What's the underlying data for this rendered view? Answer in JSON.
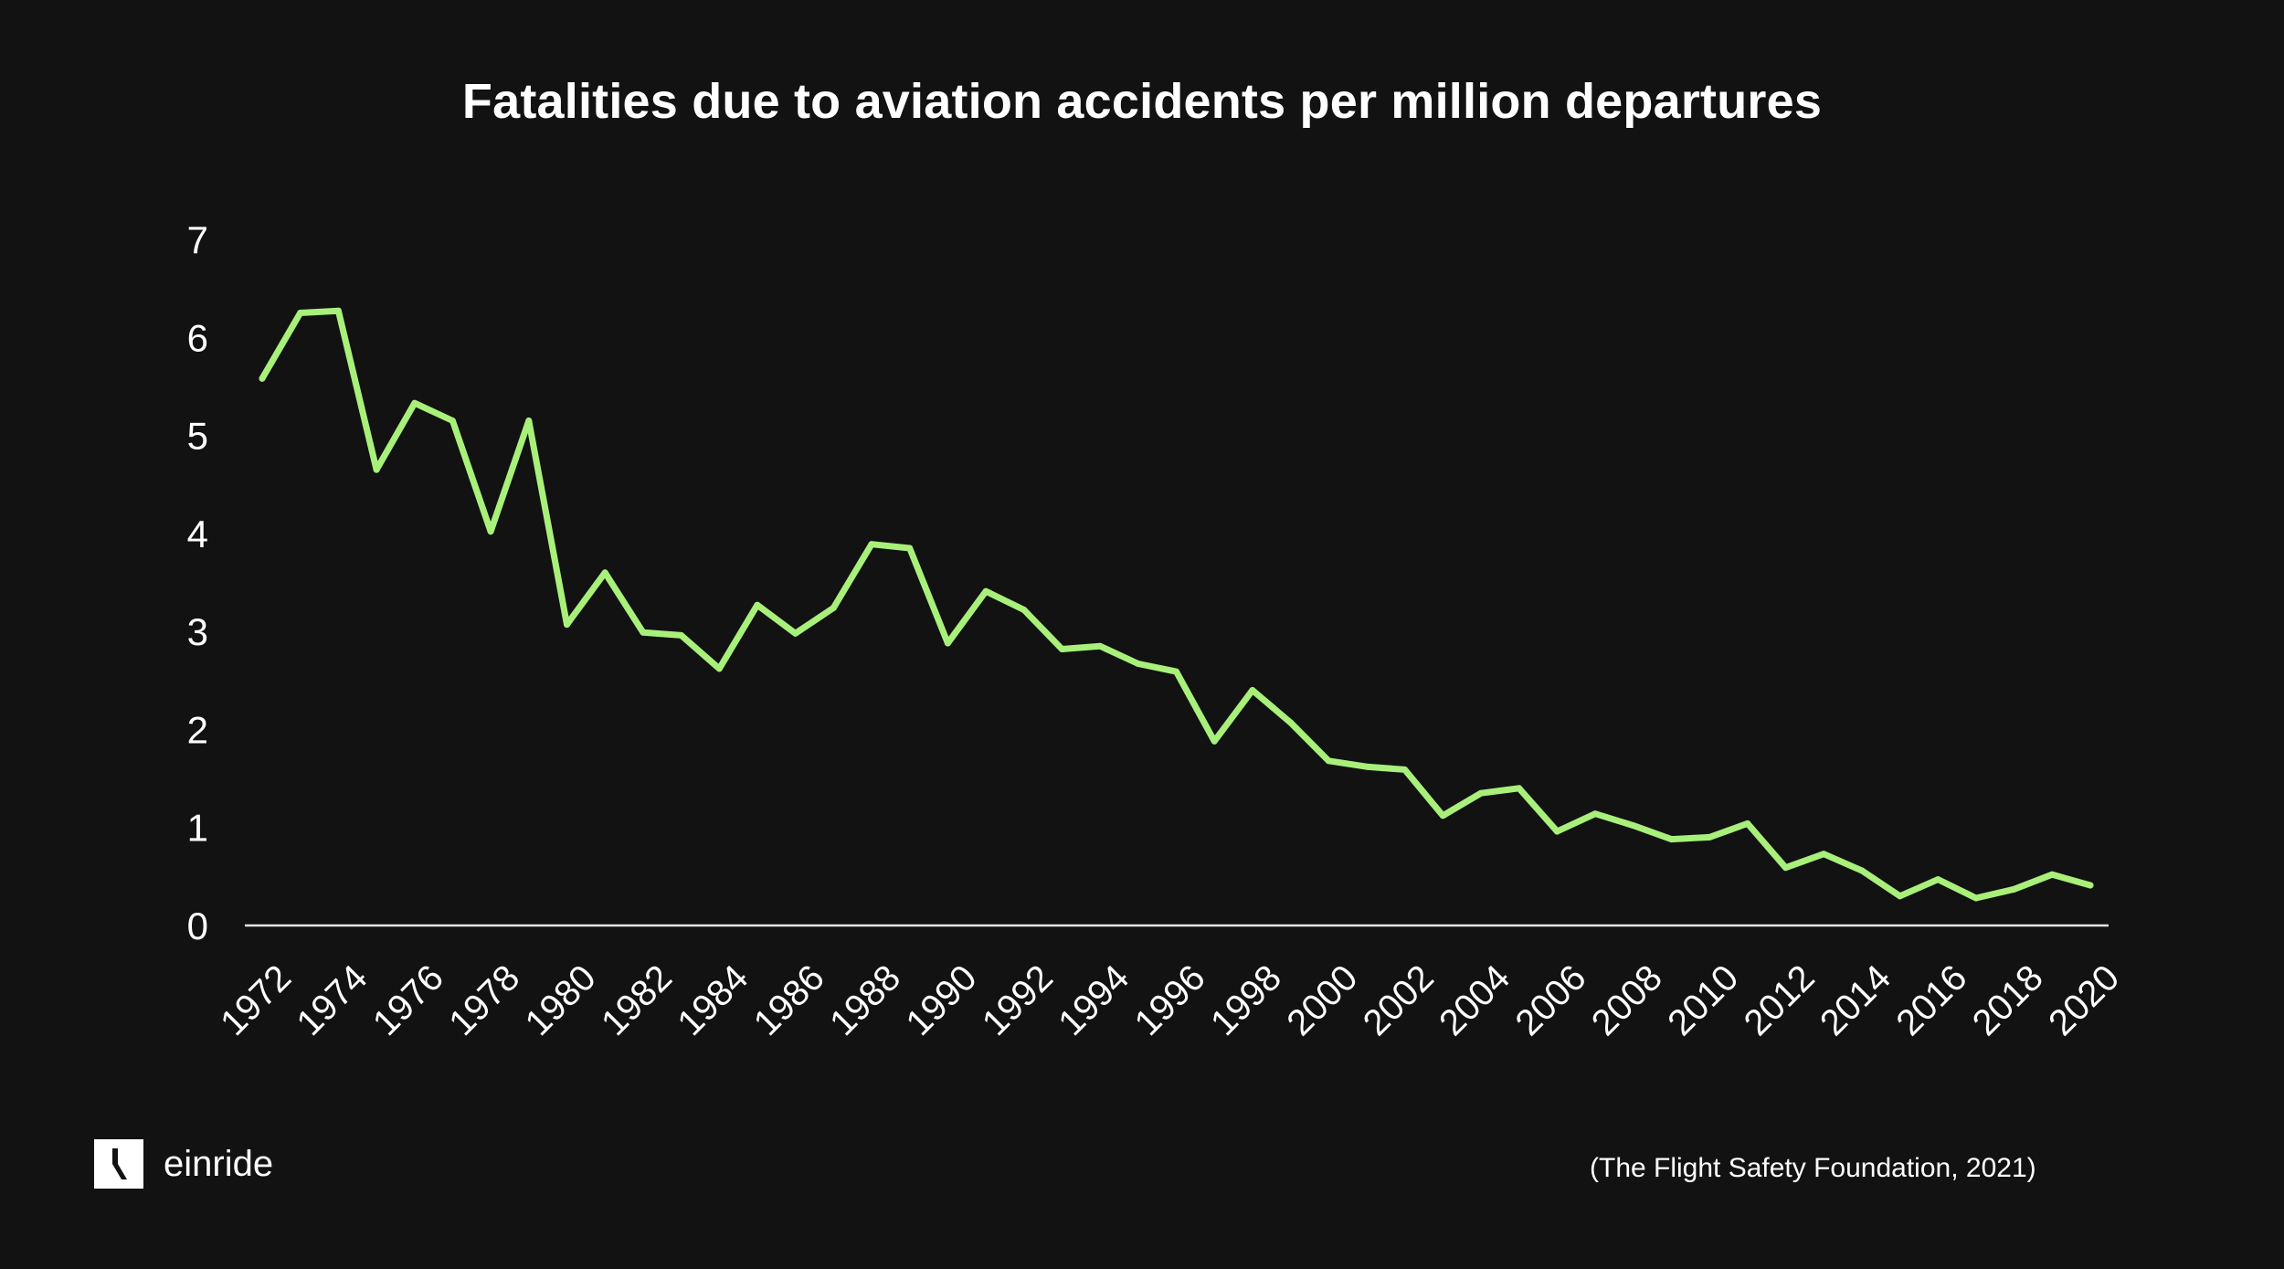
{
  "brand": {
    "name": "einride"
  },
  "source": "(The Flight Safety Foundation, 2021)",
  "colors": {
    "background": "#121212",
    "line": "#a8f07a",
    "axis": "#e6e6e6",
    "text": "#ffffff"
  },
  "chart_data": {
    "type": "line",
    "title": "Fatalities due to aviation accidents per million departures",
    "xlabel": "",
    "ylabel": "",
    "ylim": [
      0,
      7
    ],
    "yticks": [
      0,
      1,
      2,
      3,
      4,
      5,
      6,
      7
    ],
    "xtick_labels": [
      "1972",
      "1974",
      "1976",
      "1978",
      "1980",
      "1982",
      "1984",
      "1986",
      "1988",
      "1990",
      "1992",
      "1994",
      "1996",
      "1998",
      "2000",
      "2002",
      "2004",
      "2006",
      "2008",
      "2010",
      "2012",
      "2014",
      "2016",
      "2018",
      "2020"
    ],
    "grid": false,
    "legend": "none",
    "series": [
      {
        "x": [
          1972,
          1973,
          1974,
          1975,
          1976,
          1977,
          1978,
          1979,
          1980,
          1981,
          1982,
          1983,
          1984,
          1985,
          1986,
          1987,
          1988,
          1989,
          1990,
          1991,
          1992,
          1993,
          1994,
          1995,
          1996,
          1997,
          1998,
          1999,
          2000,
          2001,
          2002,
          2003,
          2004,
          2005,
          2006,
          2007,
          2008,
          2009,
          2010,
          2011,
          2012,
          2013,
          2014,
          2015,
          2016,
          2017,
          2018,
          2019,
          2020
        ],
        "values": [
          5.58,
          6.25,
          6.27,
          4.65,
          5.33,
          5.15,
          4.02,
          5.15,
          3.07,
          3.6,
          2.99,
          2.96,
          2.62,
          3.27,
          2.98,
          3.24,
          3.89,
          3.85,
          2.88,
          3.41,
          3.22,
          2.82,
          2.85,
          2.67,
          2.59,
          1.88,
          2.4,
          2.07,
          1.68,
          1.62,
          1.59,
          1.12,
          1.35,
          1.4,
          0.96,
          1.14,
          1.02,
          0.88,
          0.9,
          1.04,
          0.59,
          0.73,
          0.56,
          0.3,
          0.47,
          0.28,
          0.37,
          0.52,
          0.41
        ]
      }
    ]
  }
}
